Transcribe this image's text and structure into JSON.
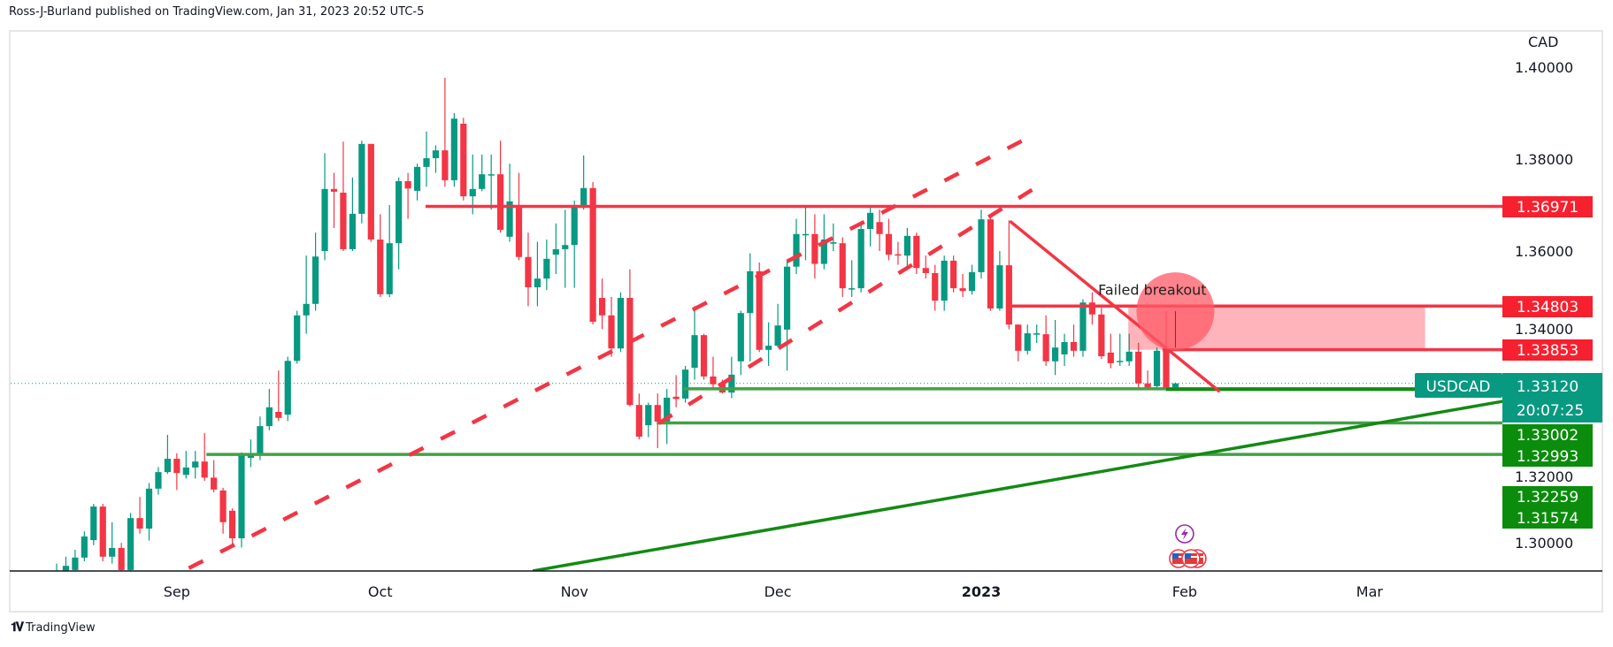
{
  "header": {
    "text": "Ross-J-Burland published on TradingView.com, Jan 31, 2023 20:52 UTC-5"
  },
  "footer": {
    "brand": "TradingView",
    "logo": "TV"
  },
  "colors": {
    "up": "#089981",
    "down": "#f23645",
    "red_line": "#f23645",
    "green_line": "#43a047",
    "dark_green": "#138a13",
    "label_red": "#f7202f",
    "label_green": "#0c8c0c",
    "last_price": "#089981",
    "zone": "#ffb3ba",
    "circle": "#ff5a66"
  },
  "chart_data": {
    "type": "candlestick",
    "symbol": "USDCAD",
    "currency": "CAD",
    "ylim": [
      1.2904,
      1.4085
    ],
    "y_ticks": [
      "1.40000",
      "1.38000",
      "1.36000",
      "1.34000",
      "1.32000",
      "1.30000"
    ],
    "y_tick_values": [
      1.4,
      1.38,
      1.36,
      1.34,
      1.32,
      1.3
    ],
    "x_ticks": [
      {
        "label": "Sep",
        "index": 12,
        "bold": false
      },
      {
        "label": "Oct",
        "index": 34,
        "bold": false
      },
      {
        "label": "Nov",
        "index": 55,
        "bold": false
      },
      {
        "label": "Dec",
        "index": 77,
        "bold": false
      },
      {
        "label": "2023",
        "index": 99,
        "bold": true
      },
      {
        "label": "Feb",
        "index": 121,
        "bold": false
      },
      {
        "label": "Mar",
        "index": 141,
        "bold": false
      }
    ],
    "x_index_range": [
      -1.3,
      156.4
    ],
    "candles_ohlc": [
      [
        1.289,
        1.292,
        1.287,
        1.2905
      ],
      [
        1.2905,
        1.2935,
        1.288,
        1.2915
      ],
      [
        1.2906,
        1.295,
        1.2895,
        1.2933
      ],
      [
        1.2933,
        1.299,
        1.2925,
        1.2979
      ],
      [
        1.2971,
        1.305,
        1.296,
        1.3044
      ],
      [
        1.3044,
        1.305,
        1.2925,
        1.2935
      ],
      [
        1.2935,
        1.301,
        1.292,
        1.2954
      ],
      [
        1.2954,
        1.2965,
        1.29,
        1.2906
      ],
      [
        1.2906,
        1.303,
        1.29,
        1.3019
      ],
      [
        1.3019,
        1.3065,
        1.2985,
        1.2996
      ],
      [
        1.2996,
        1.3095,
        1.297,
        1.3083
      ],
      [
        1.3083,
        1.313,
        1.307,
        1.3119
      ],
      [
        1.3119,
        1.32,
        1.3115,
        1.3148
      ],
      [
        1.3148,
        1.316,
        1.308,
        1.3117
      ],
      [
        1.3113,
        1.3165,
        1.3105,
        1.3129
      ],
      [
        1.3129,
        1.3165,
        1.3105,
        1.3142
      ],
      [
        1.3142,
        1.3204,
        1.31,
        1.3107
      ],
      [
        1.3107,
        1.3145,
        1.3075,
        1.3081
      ],
      [
        1.3079,
        1.3085,
        1.2985,
        1.301
      ],
      [
        1.3035,
        1.304,
        1.296,
        1.2975
      ],
      [
        1.2975,
        1.3162,
        1.2955,
        1.3156
      ],
      [
        1.315,
        1.319,
        1.313,
        1.3156
      ],
      [
        1.3156,
        1.324,
        1.3145,
        1.3219
      ],
      [
        1.3219,
        1.33,
        1.321,
        1.326
      ],
      [
        1.325,
        1.334,
        1.323,
        1.3237
      ],
      [
        1.3244,
        1.337,
        1.323,
        1.3361
      ],
      [
        1.3361,
        1.347,
        1.3355,
        1.346
      ],
      [
        1.346,
        1.359,
        1.342,
        1.3485
      ],
      [
        1.3485,
        1.364,
        1.347,
        1.3588
      ],
      [
        1.36,
        1.3813,
        1.358,
        1.3735
      ],
      [
        1.3735,
        1.377,
        1.365,
        1.3729
      ],
      [
        1.3727,
        1.3838,
        1.36,
        1.3604
      ],
      [
        1.3604,
        1.376,
        1.36,
        1.3681
      ],
      [
        1.3681,
        1.384,
        1.366,
        1.3833
      ],
      [
        1.3833,
        1.3833,
        1.362,
        1.3625
      ],
      [
        1.3625,
        1.368,
        1.35,
        1.3506
      ],
      [
        1.3506,
        1.37,
        1.35,
        1.3617
      ],
      [
        1.3617,
        1.376,
        1.356,
        1.3752
      ],
      [
        1.3752,
        1.377,
        1.367,
        1.3736
      ],
      [
        1.3731,
        1.379,
        1.371,
        1.3783
      ],
      [
        1.3783,
        1.386,
        1.374,
        1.3802
      ],
      [
        1.3802,
        1.383,
        1.377,
        1.3819
      ],
      [
        1.3819,
        1.3977,
        1.374,
        1.3754
      ],
      [
        1.3754,
        1.39,
        1.374,
        1.3888
      ],
      [
        1.3877,
        1.389,
        1.371,
        1.3719
      ],
      [
        1.3719,
        1.381,
        1.368,
        1.3735
      ],
      [
        1.3735,
        1.381,
        1.373,
        1.3767
      ],
      [
        1.3765,
        1.381,
        1.369,
        1.3767
      ],
      [
        1.3767,
        1.384,
        1.364,
        1.3646
      ],
      [
        1.3631,
        1.379,
        1.362,
        1.3708
      ],
      [
        1.3694,
        1.377,
        1.358,
        1.3587
      ],
      [
        1.3587,
        1.364,
        1.348,
        1.3521
      ],
      [
        1.3521,
        1.362,
        1.348,
        1.354
      ],
      [
        1.354,
        1.3625,
        1.3515,
        1.3583
      ],
      [
        1.3592,
        1.366,
        1.355,
        1.3604
      ],
      [
        1.3604,
        1.369,
        1.352,
        1.3613
      ],
      [
        1.3613,
        1.371,
        1.352,
        1.37
      ],
      [
        1.37,
        1.3808,
        1.369,
        1.3737
      ],
      [
        1.3737,
        1.375,
        1.344,
        1.3446
      ],
      [
        1.3498,
        1.354,
        1.343,
        1.346
      ],
      [
        1.346,
        1.35,
        1.337,
        1.3388
      ],
      [
        1.3388,
        1.351,
        1.338,
        1.3498
      ],
      [
        1.3498,
        1.356,
        1.3262,
        1.3265
      ],
      [
        1.3265,
        1.329,
        1.319,
        1.3196
      ],
      [
        1.3221,
        1.327,
        1.3195,
        1.3265
      ],
      [
        1.3265,
        1.329,
        1.3171,
        1.3229
      ],
      [
        1.3229,
        1.33,
        1.318,
        1.3281
      ],
      [
        1.3283,
        1.333,
        1.326,
        1.3278
      ],
      [
        1.3279,
        1.335,
        1.327,
        1.3342
      ],
      [
        1.3346,
        1.348,
        1.332,
        1.3417
      ],
      [
        1.3417,
        1.342,
        1.332,
        1.3327
      ],
      [
        1.3327,
        1.337,
        1.33,
        1.331
      ],
      [
        1.331,
        1.332,
        1.329,
        1.3292
      ],
      [
        1.3292,
        1.337,
        1.328,
        1.3331
      ],
      [
        1.336,
        1.347,
        1.333,
        1.3465
      ],
      [
        1.3465,
        1.3595,
        1.336,
        1.3556
      ],
      [
        1.3556,
        1.3575,
        1.338,
        1.3385
      ],
      [
        1.3385,
        1.3445,
        1.335,
        1.3394
      ],
      [
        1.3394,
        1.3485,
        1.339,
        1.3438
      ],
      [
        1.3429,
        1.358,
        1.334,
        1.3566
      ],
      [
        1.3566,
        1.367,
        1.355,
        1.3637
      ],
      [
        1.3636,
        1.3697,
        1.358,
        1.3637
      ],
      [
        1.3637,
        1.368,
        1.354,
        1.3572
      ],
      [
        1.3572,
        1.368,
        1.356,
        1.3625
      ],
      [
        1.3616,
        1.366,
        1.36,
        1.3619
      ],
      [
        1.3617,
        1.363,
        1.35,
        1.3519
      ],
      [
        1.3518,
        1.358,
        1.35,
        1.3519
      ],
      [
        1.3519,
        1.366,
        1.351,
        1.3648
      ],
      [
        1.3648,
        1.3697,
        1.361,
        1.3683
      ],
      [
        1.3663,
        1.369,
        1.36,
        1.3637
      ],
      [
        1.3637,
        1.367,
        1.358,
        1.3592
      ],
      [
        1.3593,
        1.362,
        1.357,
        1.3592
      ],
      [
        1.359,
        1.365,
        1.356,
        1.3633
      ],
      [
        1.3633,
        1.364,
        1.355,
        1.3563
      ],
      [
        1.3563,
        1.359,
        1.354,
        1.3552
      ],
      [
        1.3552,
        1.357,
        1.347,
        1.3492
      ],
      [
        1.3492,
        1.359,
        1.347,
        1.3579
      ],
      [
        1.3579,
        1.359,
        1.351,
        1.3519
      ],
      [
        1.3519,
        1.355,
        1.35,
        1.3513
      ],
      [
        1.3513,
        1.357,
        1.3505,
        1.3554
      ],
      [
        1.3554,
        1.369,
        1.354,
        1.3669
      ],
      [
        1.3669,
        1.368,
        1.347,
        1.3475
      ],
      [
        1.3475,
        1.36,
        1.347,
        1.3569
      ],
      [
        1.3569,
        1.3667,
        1.343,
        1.344
      ],
      [
        1.344,
        1.344,
        1.336,
        1.3383
      ],
      [
        1.3383,
        1.344,
        1.3375,
        1.3421
      ],
      [
        1.3418,
        1.344,
        1.34,
        1.3421
      ],
      [
        1.3419,
        1.346,
        1.335,
        1.336
      ],
      [
        1.336,
        1.345,
        1.333,
        1.339
      ],
      [
        1.3375,
        1.342,
        1.335,
        1.3402
      ],
      [
        1.3402,
        1.344,
        1.337,
        1.3383
      ],
      [
        1.3383,
        1.3495,
        1.337,
        1.3488
      ],
      [
        1.3488,
        1.351,
        1.344,
        1.3462
      ],
      [
        1.3462,
        1.348,
        1.3365,
        1.3371
      ],
      [
        1.3379,
        1.342,
        1.3345,
        1.3356
      ],
      [
        1.336,
        1.342,
        1.335,
        1.3361
      ],
      [
        1.336,
        1.342,
        1.335,
        1.3381
      ],
      [
        1.3381,
        1.34,
        1.33,
        1.3312
      ],
      [
        1.3312,
        1.334,
        1.3298,
        1.3302
      ],
      [
        1.3306,
        1.339,
        1.33,
        1.3383
      ],
      [
        1.3383,
        1.3469,
        1.3298,
        1.3298
      ],
      [
        1.33,
        1.3314,
        1.3298,
        1.3312
      ]
    ],
    "first_candle_index": -1,
    "last_price": {
      "symbol": "USDCAD",
      "value": "1.33120",
      "countdown": "20:07:25",
      "price": 1.3312
    },
    "levels": [
      {
        "price": 1.36971,
        "label": "1.36971",
        "from_index": 38.9,
        "color": "red"
      },
      {
        "price": 1.34803,
        "label": "1.34803",
        "from_index": 102,
        "color": "red"
      },
      {
        "price": 1.33853,
        "label": "1.33853",
        "from_index": 118.6,
        "color": "red"
      },
      {
        "price": 1.33002,
        "label": "1.33002",
        "from_index": 66.8,
        "color": "green"
      },
      {
        "price": 1.32993,
        "label": "1.32993",
        "from_index": 119,
        "color": "dark_green"
      },
      {
        "price": 1.32259,
        "label": "1.32259",
        "from_index": 63.9,
        "color": "green"
      },
      {
        "price": 1.31574,
        "label": "1.31574",
        "from_index": 15.2,
        "color": "green"
      }
    ],
    "trendlines": [
      {
        "name": "upper-channel-line",
        "from": [
          13.3,
          1.291
        ],
        "to": [
          105,
          1.3856
        ],
        "dashed": true,
        "color": "red"
      },
      {
        "name": "lower-channel-line",
        "from": [
          64.1,
          1.3225
        ],
        "to": [
          104.8,
          1.3737
        ],
        "dashed": true,
        "color": "red"
      },
      {
        "name": "descending-trendline",
        "from": [
          102.1,
          1.3665
        ],
        "to": [
          124.8,
          1.3294
        ],
        "dashed": false,
        "color": "red"
      },
      {
        "name": "ascending-support-line",
        "from": [
          50.5,
          1.2904
        ],
        "to": [
          155.4,
          1.3273
        ],
        "dashed": false,
        "color": "dark_green"
      }
    ],
    "zone": {
      "from_index": 114.9,
      "to_index": 147,
      "top": 1.34803,
      "bottom": 1.33853
    },
    "annotation": {
      "text": "Failed breakout",
      "index": 117.5,
      "price": 1.3505,
      "circle_index": 120,
      "circle_price": 1.3469
    },
    "events": {
      "index": 121,
      "items": [
        "lightning-event-icon",
        "us-flag-event-icon",
        "us-flag-event-icon",
        "us-flag-event-icon"
      ]
    }
  }
}
